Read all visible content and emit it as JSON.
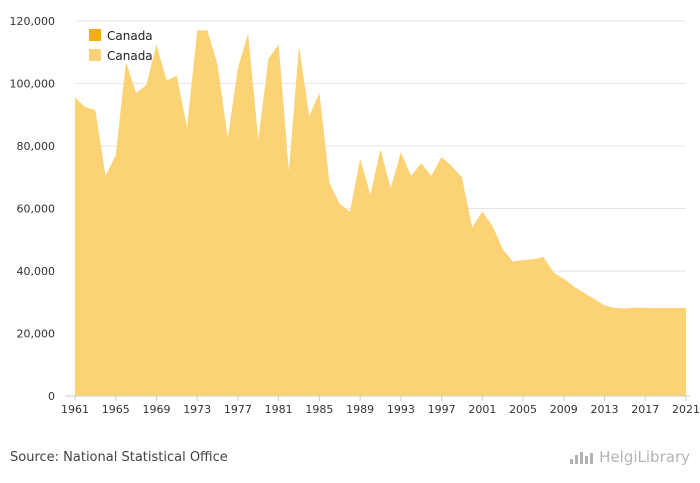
{
  "source_label": "Source: National Statistical Office",
  "brand": {
    "name": "HelgiLibrary",
    "icon": "helgi-logo-icon"
  },
  "colors": {
    "area": "#fbd375",
    "legend_dark": "#f5ac1a",
    "legend_light": "#fbd375",
    "axis": "#cccccc",
    "grid": "#e6e6e6"
  },
  "chart_data": {
    "type": "area",
    "title": "",
    "xlabel": "",
    "ylabel": "",
    "ylim": [
      0,
      120000
    ],
    "y_ticks": [
      "0",
      "20,000",
      "40,000",
      "60,000",
      "80,000",
      "100,000",
      "120,000"
    ],
    "x_ticks": [
      "1961",
      "1965",
      "1969",
      "1973",
      "1977",
      "1981",
      "1985",
      "1989",
      "1993",
      "1997",
      "2001",
      "2005",
      "2009",
      "2013",
      "2017",
      "2021"
    ],
    "legend": {
      "position": "top-left",
      "entries": [
        "Canada",
        "Canada"
      ]
    },
    "x": [
      1961,
      1962,
      1963,
      1964,
      1965,
      1966,
      1967,
      1968,
      1969,
      1970,
      1971,
      1972,
      1973,
      1974,
      1975,
      1976,
      1977,
      1978,
      1979,
      1980,
      1981,
      1982,
      1983,
      1984,
      1985,
      1986,
      1987,
      1988,
      1989,
      1990,
      1991,
      1992,
      1993,
      1994,
      1995,
      1996,
      1997,
      1998,
      1999,
      2000,
      2001,
      2002,
      2003,
      2004,
      2005,
      2006,
      2007,
      2008,
      2009,
      2010,
      2011,
      2012,
      2013,
      2014,
      2015,
      2016,
      2017,
      2018,
      2019,
      2020,
      2021
    ],
    "series": [
      {
        "values": [
          95500,
          92500,
          91500,
          70500,
          77000,
          107000,
          97000,
          99500,
          112500,
          101000,
          102500,
          86000,
          117000,
          117000,
          106000,
          82500,
          105000,
          116000,
          82000,
          108000,
          112500,
          72000,
          112000,
          89500,
          97000,
          68000,
          61500,
          59000,
          76000,
          64500,
          79000,
          66500,
          78000,
          70500,
          74500,
          70500,
          76500,
          73500,
          70000,
          54000,
          59000,
          54500,
          47000,
          43000,
          43500,
          43800,
          44500,
          39500,
          37500,
          35000,
          33000,
          31000,
          29000,
          28200,
          28000,
          28300,
          28200,
          28200,
          28200,
          28200,
          28200
        ]
      }
    ]
  }
}
